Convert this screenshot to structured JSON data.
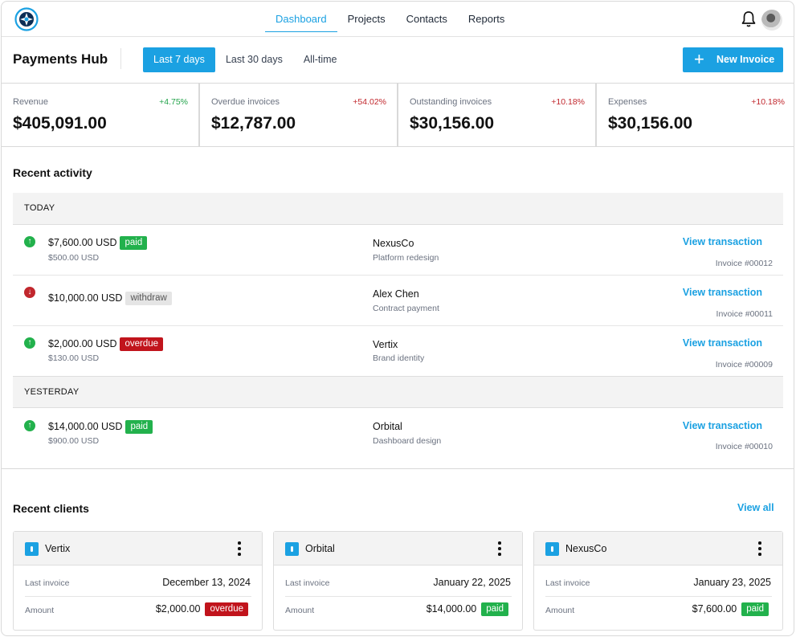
{
  "nav": {
    "links": [
      "Dashboard",
      "Projects",
      "Contacts",
      "Reports"
    ],
    "active": "Dashboard"
  },
  "header": {
    "title": "Payments Hub",
    "ranges": [
      "Last 7 days",
      "Last 30 days",
      "All-time"
    ],
    "active_range": "Last 7 days",
    "new_invoice_label": "New Invoice"
  },
  "stats": [
    {
      "label": "Revenue",
      "delta": "+4.75%",
      "trend": "positive",
      "value": "$405,091.00"
    },
    {
      "label": "Overdue invoices",
      "delta": "+54.02%",
      "trend": "negative",
      "value": "$12,787.00"
    },
    {
      "label": "Outstanding invoices",
      "delta": "+10.18%",
      "trend": "negative",
      "value": "$30,156.00"
    },
    {
      "label": "Expenses",
      "delta": "+10.18%",
      "trend": "negative",
      "value": "$30,156.00"
    }
  ],
  "activity": {
    "title": "Recent activity",
    "groups": [
      {
        "label": "TODAY",
        "rows": [
          {
            "direction": "up",
            "amount": "$7,600.00 USD",
            "badge": "paid",
            "sub": "$500.00 USD",
            "client": "NexusCo",
            "desc": "Platform redesign",
            "link": "View transaction",
            "invoice": "Invoice #00012"
          },
          {
            "direction": "down",
            "amount": "$10,000.00 USD",
            "badge": "withdraw",
            "sub": "",
            "client": "Alex Chen",
            "desc": "Contract payment",
            "link": "View transaction",
            "invoice": "Invoice #00011"
          },
          {
            "direction": "up",
            "amount": "$2,000.00 USD",
            "badge": "overdue",
            "sub": "$130.00 USD",
            "client": "Vertix",
            "desc": "Brand identity",
            "link": "View transaction",
            "invoice": "Invoice #00009"
          }
        ]
      },
      {
        "label": "YESTERDAY",
        "rows": [
          {
            "direction": "up",
            "amount": "$14,000.00 USD",
            "badge": "paid",
            "sub": "$900.00 USD",
            "client": "Orbital",
            "desc": "Dashboard design",
            "link": "View transaction",
            "invoice": "Invoice #00010"
          }
        ]
      }
    ]
  },
  "clients": {
    "title": "Recent clients",
    "view_all": "View all",
    "cards": [
      {
        "name": "Vertix",
        "last_invoice_label": "Last invoice",
        "last_invoice": "December 13, 2024",
        "amount_label": "Amount",
        "amount": "$2,000.00",
        "status": "overdue"
      },
      {
        "name": "Orbital",
        "last_invoice_label": "Last invoice",
        "last_invoice": "January 22, 2025",
        "amount_label": "Amount",
        "amount": "$14,000.00",
        "status": "paid"
      },
      {
        "name": "NexusCo",
        "last_invoice_label": "Last invoice",
        "last_invoice": "January 23, 2025",
        "amount_label": "Amount",
        "amount": "$7,600.00",
        "status": "paid"
      }
    ]
  },
  "colors": {
    "accent": "#1ba1e2",
    "positive": "#22b14c",
    "negative": "#c1141c"
  },
  "icons": {
    "logo": "logo-icon",
    "bell": "bell-icon",
    "plus": "plus-icon",
    "up": "arrow-up-circle-icon",
    "down": "arrow-down-circle-icon",
    "client": "client-icon",
    "menu": "more-vertical-icon"
  }
}
